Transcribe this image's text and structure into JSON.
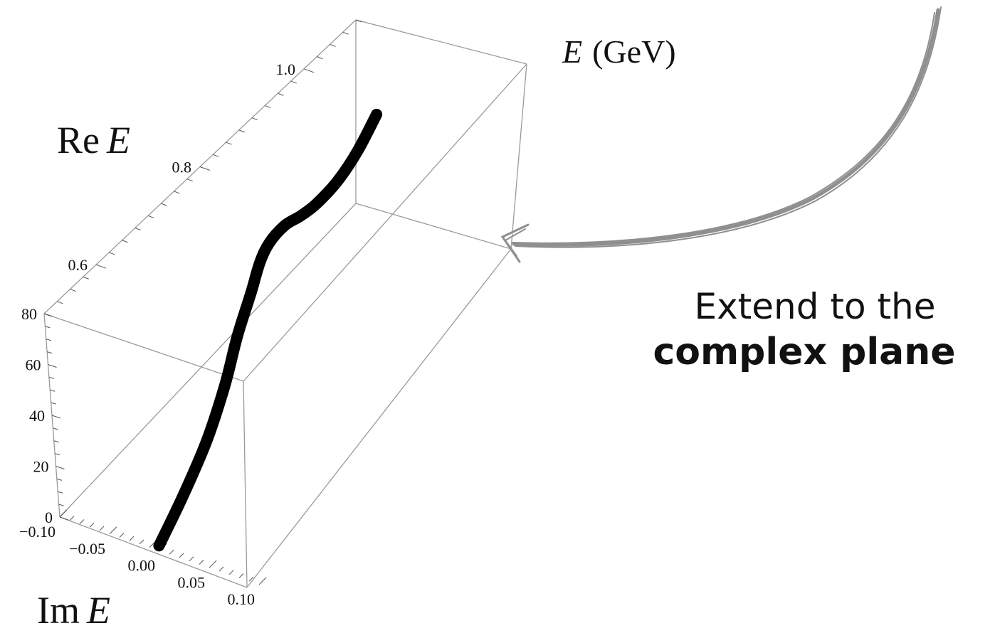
{
  "chart_data": {
    "type": "line",
    "projection": "3d",
    "axes": {
      "re": {
        "label": "Re E",
        "ticks": [
          "0.6",
          "0.8",
          "1.0"
        ],
        "tick_values": [
          0.6,
          0.8,
          1.0
        ],
        "range": [
          0.5,
          1.1
        ]
      },
      "im": {
        "label": "Im E",
        "ticks": [
          "−0.10",
          "−0.05",
          "0.00",
          "0.05",
          "0.10"
        ],
        "tick_values": [
          -0.1,
          -0.05,
          0.0,
          0.05,
          0.1
        ],
        "range": [
          -0.1,
          0.1
        ]
      },
      "z": {
        "ticks": [
          "0",
          "20",
          "40",
          "60",
          "80"
        ],
        "tick_values": [
          0,
          20,
          40,
          60,
          80
        ],
        "range": [
          0,
          80
        ]
      }
    },
    "series": [
      {
        "points": [
          {
            "re": 0.5,
            "im": 0.0,
            "z": 2
          },
          {
            "re": 0.55,
            "im": 0.0,
            "z": 12
          },
          {
            "re": 0.6,
            "im": 0.0,
            "z": 24
          },
          {
            "re": 0.64,
            "im": 0.0,
            "z": 38
          },
          {
            "re": 0.67,
            "im": 0.0,
            "z": 52
          },
          {
            "re": 0.7,
            "im": 0.0,
            "z": 63
          },
          {
            "re": 0.72,
            "im": 0.0,
            "z": 71
          },
          {
            "re": 0.74,
            "im": 0.0,
            "z": 75
          },
          {
            "re": 0.77,
            "im": 0.0,
            "z": 76
          },
          {
            "re": 0.8,
            "im": 0.0,
            "z": 74
          },
          {
            "re": 0.83,
            "im": 0.0,
            "z": 73
          },
          {
            "re": 0.87,
            "im": 0.0,
            "z": 74
          },
          {
            "re": 0.91,
            "im": 0.0,
            "z": 78
          },
          {
            "re": 0.95,
            "im": 0.0,
            "z": 85
          }
        ],
        "color": "#000000"
      }
    ],
    "grid": false,
    "annotations": {
      "top_right_label": "E (GeV)",
      "callout_line1": "Extend to the",
      "callout_line2": "complex plane"
    }
  }
}
